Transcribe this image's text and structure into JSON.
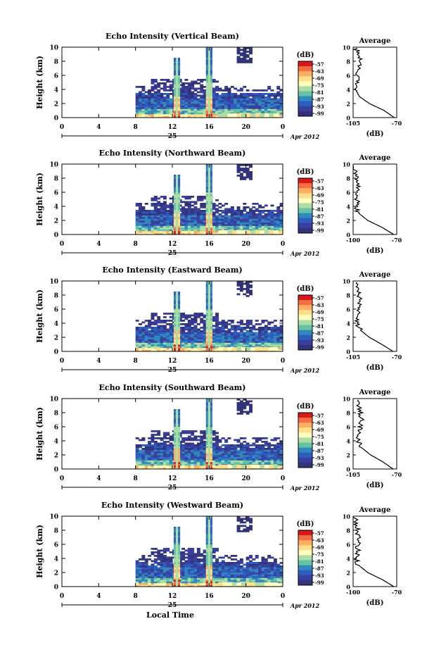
{
  "chart_data": [
    {
      "type": "heatmap",
      "title": "Echo Intensity (Vertical Beam)",
      "ylabel": "Height (km)",
      "ylim": [
        0,
        10
      ],
      "yticks": [
        "0",
        "2",
        "4",
        "6",
        "8",
        "10"
      ],
      "xlim": [
        0,
        24
      ],
      "xticks": [
        "0",
        "4",
        "8",
        "12",
        "16",
        "20",
        "0"
      ],
      "day_label": "25",
      "month_label": "Apr 2012",
      "colorbar": {
        "unit": "(dB)",
        "ticks": [
          "-57",
          "-63",
          "-69",
          "-75",
          "-81",
          "-87",
          "-93",
          "-99"
        ]
      },
      "data_start_hour": 8,
      "spikes_hour": [
        12.5,
        16
      ],
      "average": {
        "title": "Average",
        "xlabel": "(dB)",
        "xticks": [
          "-105",
          "-70"
        ],
        "xlim": [
          -105,
          -70
        ],
        "profile": [
          [
            0,
            -72
          ],
          [
            1,
            -80
          ],
          [
            2,
            -92
          ],
          [
            3,
            -100
          ],
          [
            4,
            -103
          ],
          [
            5,
            -102
          ],
          [
            6,
            -101
          ],
          [
            7,
            -100
          ],
          [
            8,
            -99
          ],
          [
            9,
            -101
          ],
          [
            10,
            -103
          ]
        ]
      }
    },
    {
      "type": "heatmap",
      "title": "Echo Intensity (Northward Beam)",
      "ylabel": "Height (km)",
      "ylim": [
        0,
        10
      ],
      "yticks": [
        "0",
        "2",
        "4",
        "6",
        "8",
        "10"
      ],
      "xlim": [
        0,
        24
      ],
      "xticks": [
        "0",
        "4",
        "8",
        "12",
        "16",
        "20",
        "0"
      ],
      "day_label": "25",
      "month_label": "Apr 2012",
      "colorbar": {
        "unit": "(dB)",
        "ticks": [
          "-57",
          "-63",
          "-69",
          "-75",
          "-81",
          "-87",
          "-93",
          "-99"
        ]
      },
      "data_start_hour": 8,
      "spikes_hour": [
        12.5,
        16
      ],
      "average": {
        "title": "Average",
        "xlabel": "(dB)",
        "xticks": [
          "-100",
          "-70"
        ],
        "xlim": [
          -100,
          -70
        ],
        "profile": [
          [
            0,
            -72
          ],
          [
            1,
            -80
          ],
          [
            2,
            -90
          ],
          [
            3,
            -96
          ],
          [
            4,
            -98
          ],
          [
            5,
            -97
          ],
          [
            6,
            -98
          ],
          [
            7,
            -97
          ],
          [
            8,
            -98
          ],
          [
            9,
            -99
          ],
          [
            10,
            -100
          ]
        ]
      }
    },
    {
      "type": "heatmap",
      "title": "Echo Intensity (Eastward Beam)",
      "ylabel": "Height (km)",
      "ylim": [
        0,
        10
      ],
      "yticks": [
        "0",
        "2",
        "4",
        "6",
        "8",
        "10"
      ],
      "xlim": [
        0,
        24
      ],
      "xticks": [
        "0",
        "4",
        "8",
        "12",
        "16",
        "20",
        "0"
      ],
      "day_label": "25",
      "month_label": "Apr 2012",
      "colorbar": {
        "unit": "(dB)",
        "ticks": [
          "-57",
          "-63",
          "-69",
          "-75",
          "-81",
          "-87",
          "-93",
          "-99"
        ]
      },
      "data_start_hour": 8,
      "spikes_hour": [
        12.5,
        16
      ],
      "average": {
        "title": "Average",
        "xlabel": "(dB)",
        "xticks": [
          "-105",
          "-70"
        ],
        "xlim": [
          -105,
          -70
        ],
        "profile": [
          [
            0,
            -73
          ],
          [
            1,
            -82
          ],
          [
            2,
            -92
          ],
          [
            3,
            -99
          ],
          [
            4,
            -102
          ],
          [
            5,
            -101
          ],
          [
            6,
            -101
          ],
          [
            7,
            -100
          ],
          [
            8,
            -100
          ],
          [
            9,
            -102
          ],
          [
            10,
            -104
          ]
        ]
      }
    },
    {
      "type": "heatmap",
      "title": "Echo Intensity (Southward Beam)",
      "ylabel": "Height (km)",
      "ylim": [
        0,
        10
      ],
      "yticks": [
        "0",
        "2",
        "4",
        "6",
        "8",
        "10"
      ],
      "xlim": [
        0,
        24
      ],
      "xticks": [
        "0",
        "4",
        "8",
        "12",
        "16",
        "20",
        "0"
      ],
      "day_label": "25",
      "month_label": "Apr 2012",
      "colorbar": {
        "unit": "(dB)",
        "ticks": [
          "-57",
          "-63",
          "-69",
          "-75",
          "-81",
          "-87",
          "-93",
          "-99"
        ]
      },
      "data_start_hour": 8,
      "spikes_hour": [
        12.5,
        16
      ],
      "average": {
        "title": "Average",
        "xlabel": "(dB)",
        "xticks": [
          "-105",
          "-70"
        ],
        "xlim": [
          -105,
          -70
        ],
        "profile": [
          [
            0,
            -73
          ],
          [
            1,
            -81
          ],
          [
            2,
            -91
          ],
          [
            3,
            -98
          ],
          [
            4,
            -101
          ],
          [
            5,
            -100
          ],
          [
            6,
            -99
          ],
          [
            7,
            -98
          ],
          [
            8,
            -99
          ],
          [
            9,
            -101
          ],
          [
            10,
            -103
          ]
        ]
      }
    },
    {
      "type": "heatmap",
      "title": "Echo Intensity (Westward Beam)",
      "ylabel": "Height (km)",
      "ylim": [
        0,
        10
      ],
      "yticks": [
        "0",
        "2",
        "4",
        "6",
        "8",
        "10"
      ],
      "xlim": [
        0,
        24
      ],
      "xticks": [
        "0",
        "4",
        "8",
        "12",
        "16",
        "20",
        "0"
      ],
      "day_label": "25",
      "month_label": "Apr 2012",
      "xlabel": "Local Time",
      "colorbar": {
        "unit": "(dB)",
        "ticks": [
          "-57",
          "-63",
          "-69",
          "-75",
          "-81",
          "-87",
          "-93",
          "-99"
        ]
      },
      "data_start_hour": 8,
      "spikes_hour": [
        12.5,
        16
      ],
      "average": {
        "title": "Average",
        "xlabel": "(dB)",
        "xticks": [
          "-100",
          "-70"
        ],
        "xlim": [
          -100,
          -70
        ],
        "profile": [
          [
            0,
            -72
          ],
          [
            1,
            -80
          ],
          [
            2,
            -90
          ],
          [
            3,
            -96
          ],
          [
            4,
            -98
          ],
          [
            5,
            -97
          ],
          [
            6,
            -97
          ],
          [
            7,
            -96
          ],
          [
            8,
            -97
          ],
          [
            9,
            -98
          ],
          [
            10,
            -99
          ]
        ]
      }
    }
  ],
  "colors": {
    "scale": [
      "#d7191c",
      "#f46d43",
      "#fdae61",
      "#fee08b",
      "#ffffbf",
      "#abdda4",
      "#66c2a5",
      "#3288bd",
      "#2b5fbf",
      "#3a3f9e",
      "#33337a"
    ],
    "background": "#ffffff",
    "axis": "#000000"
  }
}
